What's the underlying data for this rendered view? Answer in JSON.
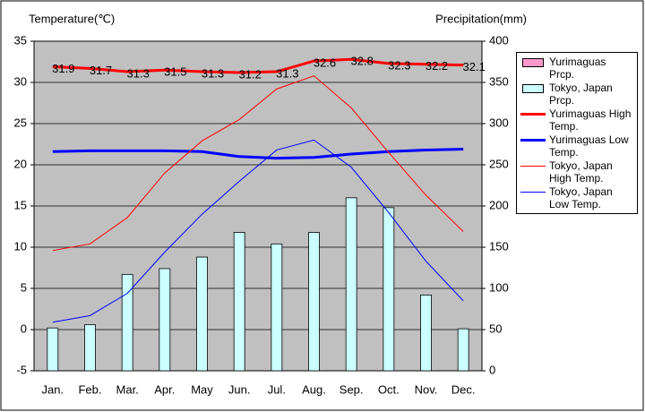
{
  "chart_data": {
    "type": "combo",
    "y_label": "Temperature(℃)",
    "y2_label": "Precipitation(mm)",
    "categories": [
      "Jan.",
      "Feb.",
      "Mar.",
      "Apr.",
      "May",
      "Jun.",
      "Jul.",
      "Aug.",
      "Sep.",
      "Oct.",
      "Nov.",
      "Dec."
    ],
    "ylim": [
      -5,
      35
    ],
    "yticks": [
      -5,
      0,
      5,
      10,
      15,
      20,
      25,
      30,
      35
    ],
    "y2lim": [
      0,
      400
    ],
    "y2ticks": [
      0,
      50,
      100,
      150,
      200,
      250,
      300,
      350,
      400
    ],
    "grid": true,
    "legend": "right",
    "series": [
      {
        "name": "Yurimaguas Prcp.",
        "type": "bar",
        "axis": "y2",
        "color": "#ff99cc",
        "values": [
          null,
          null,
          null,
          null,
          null,
          null,
          null,
          null,
          null,
          null,
          null,
          null
        ]
      },
      {
        "name": "Tokyo, Japan Prcp.",
        "type": "bar",
        "axis": "y2",
        "color": "#ccffff",
        "values": [
          52,
          56,
          117,
          124,
          138,
          168,
          154,
          168,
          210,
          198,
          92,
          51
        ]
      },
      {
        "name": "Yurimaguas High Temp.",
        "type": "line",
        "color": "#ff0000",
        "width": 3,
        "data_labels": true,
        "values": [
          31.9,
          31.7,
          31.3,
          31.5,
          31.3,
          31.2,
          31.3,
          32.6,
          32.8,
          32.3,
          32.2,
          32.1
        ]
      },
      {
        "name": "Yurimaguas Low Temp.",
        "type": "line",
        "color": "#0000ff",
        "width": 3,
        "values": [
          21.6,
          21.7,
          21.7,
          21.7,
          21.6,
          21.0,
          20.8,
          20.9,
          21.3,
          21.6,
          21.8,
          21.9
        ]
      },
      {
        "name": "Tokyo, Japan High Temp.",
        "type": "line",
        "color": "#ff0000",
        "width": 1,
        "values": [
          9.6,
          10.4,
          13.6,
          19.0,
          22.9,
          25.5,
          29.2,
          30.8,
          26.9,
          21.5,
          16.3,
          11.9
        ]
      },
      {
        "name": "Tokyo, Japan Low Temp.",
        "type": "line",
        "color": "#0000ff",
        "width": 1,
        "values": [
          0.9,
          1.7,
          4.4,
          9.4,
          14.0,
          18.0,
          21.8,
          23.0,
          19.7,
          14.2,
          8.3,
          3.5
        ]
      }
    ]
  }
}
